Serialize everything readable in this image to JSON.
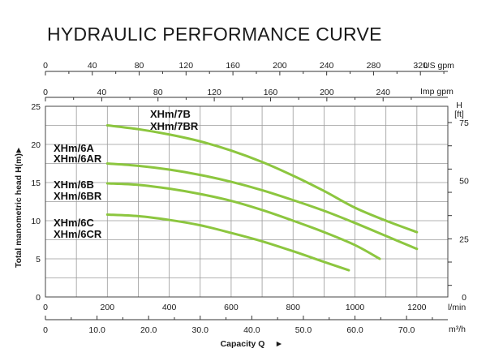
{
  "chart_data": {
    "type": "line",
    "title": "HYDRAULIC PERFORMANCE CURVE",
    "xlabel": "Capacity Q",
    "xlabel_arrow": "►",
    "ylabel": "Total manometric head H(m)",
    "ylabel_arrow": "►",
    "x_lmin": {
      "unit": "l/min",
      "range": [
        0,
        1300
      ],
      "ticks": [
        "0",
        "200",
        "400",
        "600",
        "800",
        "1000",
        "1200"
      ]
    },
    "x_m3h": {
      "unit": "m³/h",
      "range": [
        0,
        78
      ],
      "ticks": [
        "0",
        "10.0",
        "20.0",
        "30.0",
        "40.0",
        "50.0",
        "60.0",
        "70.0"
      ]
    },
    "x_usgpm": {
      "unit": "US gpm",
      "range": [
        0,
        343.4
      ],
      "ticks": [
        "0",
        "40",
        "80",
        "120",
        "160",
        "200",
        "240",
        "280",
        "320"
      ]
    },
    "x_impgpm": {
      "unit": "Imp gpm",
      "range": [
        0,
        286
      ],
      "ticks": [
        "0",
        "40",
        "80",
        "120",
        "160",
        "200",
        "240"
      ]
    },
    "y_m": {
      "unit": "H(m)",
      "range": [
        0,
        25
      ],
      "ticks": [
        "0",
        "5",
        "10",
        "15",
        "20",
        "25"
      ]
    },
    "y_ft": {
      "unit_top": "H",
      "unit_bottom": "[ft]",
      "range": [
        0,
        82
      ],
      "ticks": [
        "0",
        "25",
        "50",
        "75"
      ]
    },
    "series": [
      {
        "name": "XHm/7B / XHm/7BR",
        "labels": [
          "XHm/7B",
          "XHm/7BR"
        ],
        "x": [
          200,
          300,
          400,
          500,
          600,
          700,
          800,
          900,
          1000,
          1100,
          1200
        ],
        "y": [
          22.5,
          22.0,
          21.3,
          20.4,
          19.2,
          17.7,
          15.9,
          13.9,
          11.7,
          10.0,
          8.5
        ]
      },
      {
        "name": "XHm/6A / XHm/6AR",
        "labels": [
          "XHm/6A",
          "XHm/6AR"
        ],
        "x": [
          200,
          300,
          400,
          500,
          600,
          700,
          800,
          900,
          1000,
          1100,
          1200
        ],
        "y": [
          17.5,
          17.2,
          16.7,
          16.0,
          15.1,
          14.0,
          12.7,
          11.3,
          9.7,
          8.0,
          6.3
        ]
      },
      {
        "name": "XHm/6B / XHm/6BR",
        "labels": [
          "XHm/6B",
          "XHm/6BR"
        ],
        "x": [
          200,
          300,
          400,
          500,
          600,
          700,
          800,
          900,
          1000,
          1080
        ],
        "y": [
          14.9,
          14.7,
          14.2,
          13.5,
          12.6,
          11.4,
          10.0,
          8.5,
          6.8,
          5.0
        ]
      },
      {
        "name": "XHm/6C / XHm/6CR",
        "labels": [
          "XHm/6C",
          "XHm/6CR"
        ],
        "x": [
          200,
          300,
          400,
          500,
          600,
          700,
          800,
          900,
          980
        ],
        "y": [
          10.8,
          10.6,
          10.1,
          9.4,
          8.4,
          7.3,
          6.0,
          4.6,
          3.5
        ]
      }
    ],
    "colors": {
      "curve": "#8cc63f",
      "grid": "#9a9a9a",
      "text": "#1a1a1a"
    },
    "grid": true
  }
}
